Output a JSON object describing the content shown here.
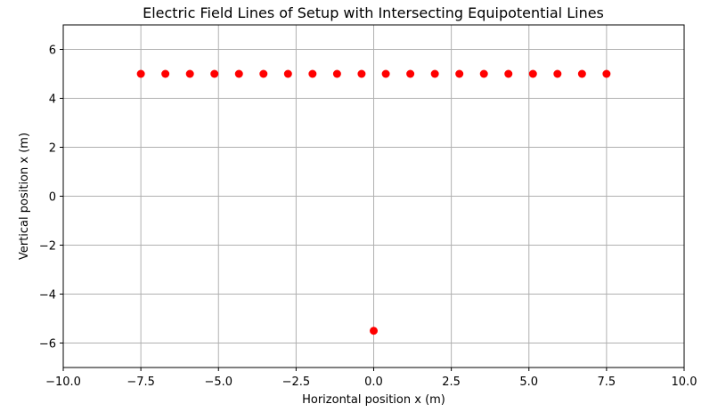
{
  "chart_data": {
    "type": "scatter",
    "title": "Electric Field Lines of Setup with Intersecting Equipotential Lines",
    "xlabel": "Horizontal position x (m)",
    "ylabel": "Vertical position x (m)",
    "xlim": [
      -10,
      10
    ],
    "ylim": [
      -7,
      7
    ],
    "xticks": [
      -10,
      -7.5,
      -5,
      -2.5,
      0,
      2.5,
      5,
      7.5,
      10
    ],
    "xtick_labels": [
      "−10.0",
      "−7.5",
      "−5.0",
      "−2.5",
      "0.0",
      "2.5",
      "5.0",
      "7.5",
      "10.0"
    ],
    "yticks": [
      -6,
      -4,
      -2,
      0,
      2,
      4,
      6
    ],
    "ytick_labels": [
      "−6",
      "−4",
      "−2",
      "0",
      "2",
      "4",
      "6"
    ],
    "grid": true,
    "marker_color": "#ff0000",
    "series": [
      {
        "points": [
          [
            -7.5,
            5
          ],
          [
            -6.71,
            5
          ],
          [
            -5.92,
            5
          ],
          [
            -5.13,
            5
          ],
          [
            -4.34,
            5
          ],
          [
            -3.55,
            5
          ],
          [
            -2.76,
            5
          ],
          [
            -1.97,
            5
          ],
          [
            -1.18,
            5
          ],
          [
            -0.39,
            5
          ],
          [
            0.39,
            5
          ],
          [
            1.18,
            5
          ],
          [
            1.97,
            5
          ],
          [
            2.76,
            5
          ],
          [
            3.55,
            5
          ],
          [
            4.34,
            5
          ],
          [
            5.13,
            5
          ],
          [
            5.92,
            5
          ],
          [
            6.71,
            5
          ],
          [
            7.5,
            5
          ],
          [
            0,
            -5.5
          ]
        ]
      }
    ]
  }
}
